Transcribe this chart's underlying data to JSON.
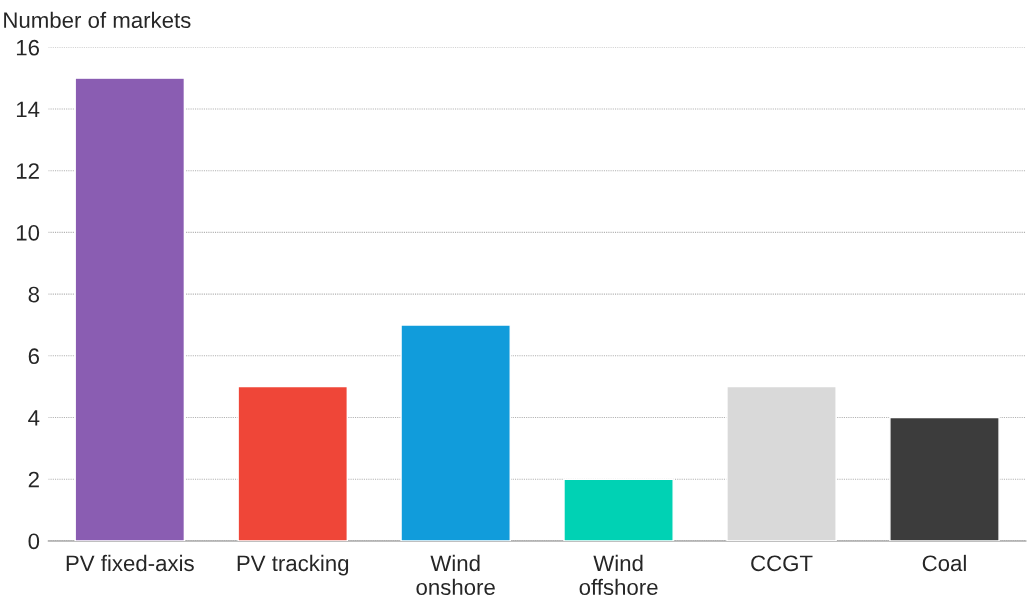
{
  "chart_data": {
    "type": "bar",
    "ylabel": "Number of markets",
    "categories": [
      "PV fixed-axis",
      "PV tracking",
      "Wind\nonshore",
      "Wind\noffshore",
      "CCGT",
      "Coal"
    ],
    "values": [
      15,
      5,
      7,
      2,
      5,
      4
    ],
    "colors": [
      "#8a5db2",
      "#ef4638",
      "#119cdb",
      "#00d2b4",
      "#d9d9d9",
      "#3c3c3c"
    ],
    "ylim": [
      0,
      16
    ],
    "yticks": [
      0,
      2,
      4,
      6,
      8,
      10,
      12,
      14,
      16
    ],
    "grid": "y"
  }
}
